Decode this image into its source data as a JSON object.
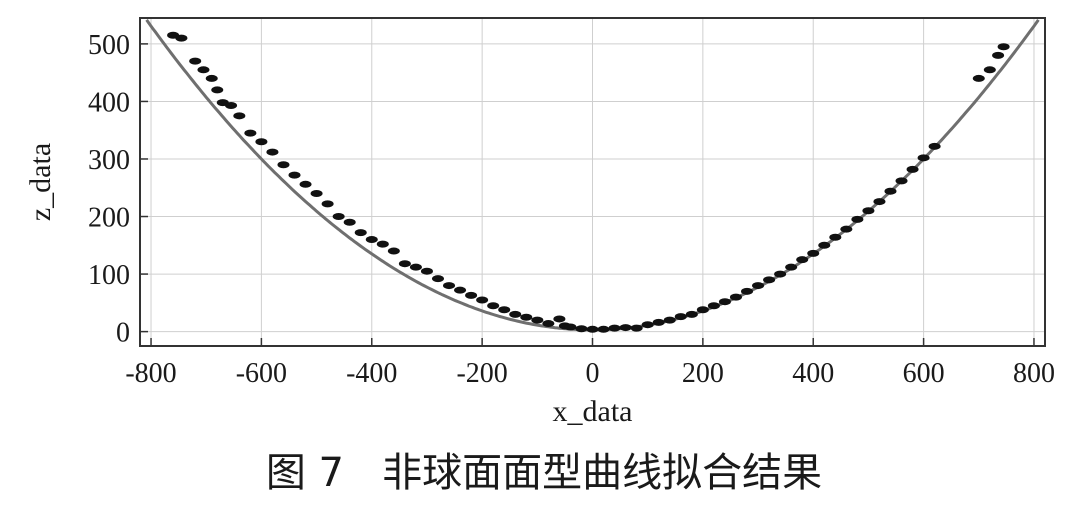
{
  "caption": "图 7   非球面面型曲线拟合结果",
  "chart_data": {
    "type": "scatter",
    "xlabel": "x_data",
    "ylabel": "z_data",
    "xlim": [
      -820,
      820
    ],
    "ylim": [
      -25,
      545
    ],
    "x_ticks": [
      -800,
      -600,
      -400,
      -200,
      0,
      200,
      400,
      600,
      800
    ],
    "y_ticks": [
      0,
      100,
      200,
      300,
      400,
      500
    ],
    "grid": true,
    "fit_curve": {
      "name": "",
      "model": "z = a*x^2 + c",
      "a": 0.000825,
      "c": 3
    },
    "series": [
      {
        "name": "",
        "points": [
          [
            -760,
            515
          ],
          [
            -745,
            510
          ],
          [
            -720,
            470
          ],
          [
            -705,
            455
          ],
          [
            -690,
            440
          ],
          [
            -680,
            420
          ],
          [
            -670,
            398
          ],
          [
            -655,
            393
          ],
          [
            -640,
            375
          ],
          [
            -620,
            345
          ],
          [
            -600,
            330
          ],
          [
            -580,
            312
          ],
          [
            -560,
            290
          ],
          [
            -540,
            272
          ],
          [
            -520,
            256
          ],
          [
            -500,
            240
          ],
          [
            -480,
            222
          ],
          [
            -460,
            200
          ],
          [
            -440,
            190
          ],
          [
            -420,
            172
          ],
          [
            -400,
            160
          ],
          [
            -380,
            152
          ],
          [
            -360,
            140
          ],
          [
            -340,
            118
          ],
          [
            -320,
            112
          ],
          [
            -300,
            105
          ],
          [
            -280,
            92
          ],
          [
            -260,
            80
          ],
          [
            -240,
            72
          ],
          [
            -220,
            63
          ],
          [
            -200,
            55
          ],
          [
            -180,
            45
          ],
          [
            -160,
            38
          ],
          [
            -140,
            30
          ],
          [
            -120,
            25
          ],
          [
            -100,
            20
          ],
          [
            -80,
            14
          ],
          [
            -60,
            22
          ],
          [
            -50,
            10
          ],
          [
            -40,
            8
          ],
          [
            -20,
            5
          ],
          [
            0,
            4
          ],
          [
            20,
            4
          ],
          [
            40,
            6
          ],
          [
            60,
            7
          ],
          [
            80,
            6
          ],
          [
            100,
            12
          ],
          [
            120,
            16
          ],
          [
            140,
            20
          ],
          [
            160,
            26
          ],
          [
            180,
            30
          ],
          [
            200,
            38
          ],
          [
            220,
            45
          ],
          [
            240,
            52
          ],
          [
            260,
            60
          ],
          [
            280,
            70
          ],
          [
            300,
            80
          ],
          [
            320,
            90
          ],
          [
            340,
            100
          ],
          [
            360,
            112
          ],
          [
            380,
            125
          ],
          [
            400,
            136
          ],
          [
            420,
            150
          ],
          [
            440,
            164
          ],
          [
            460,
            178
          ],
          [
            480,
            195
          ],
          [
            500,
            210
          ],
          [
            520,
            226
          ],
          [
            540,
            244
          ],
          [
            560,
            262
          ],
          [
            580,
            282
          ],
          [
            600,
            302
          ],
          [
            620,
            322
          ],
          [
            700,
            440
          ],
          [
            720,
            455
          ],
          [
            735,
            480
          ],
          [
            745,
            495
          ]
        ]
      }
    ]
  }
}
